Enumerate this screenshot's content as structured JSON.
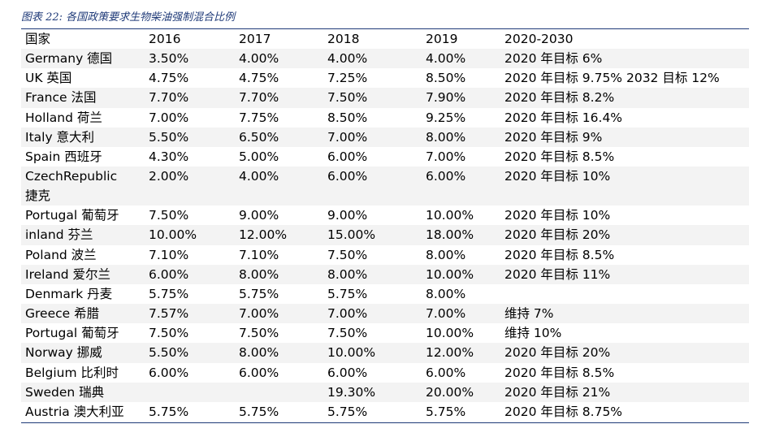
{
  "caption": "图表 22:  各国政策要求生物柴油强制混合比例",
  "table": {
    "headers": [
      "国家",
      "2016",
      "2017",
      "2018",
      "2019",
      "2020-2030"
    ],
    "rows": [
      {
        "country": "Germany 德国",
        "y2016": "3.50%",
        "y2017": "4.00%",
        "y2018": "4.00%",
        "y2019": "4.00%",
        "target": "2020 年目标 6%"
      },
      {
        "country": "UK 英国",
        "y2016": "4.75%",
        "y2017": "4.75%",
        "y2018": "7.25%",
        "y2019": "8.50%",
        "target": "2020 年目标 9.75% 2032 目标 12%"
      },
      {
        "country": "France 法国",
        "y2016": "7.70%",
        "y2017": "7.70%",
        "y2018": "7.50%",
        "y2019": "7.90%",
        "target": "2020 年目标 8.2%"
      },
      {
        "country": "Holland 荷兰",
        "y2016": "7.00%",
        "y2017": "7.75%",
        "y2018": "8.50%",
        "y2019": "9.25%",
        "target": "2020 年目标 16.4%"
      },
      {
        "country": "Italy 意大利",
        "y2016": "5.50%",
        "y2017": "6.50%",
        "y2018": "7.00%",
        "y2019": "8.00%",
        "target": "2020 年目标 9%"
      },
      {
        "country": "Spain 西班牙",
        "y2016": "4.30%",
        "y2017": "5.00%",
        "y2018": "6.00%",
        "y2019": "7.00%",
        "target": "2020 年目标 8.5%"
      },
      {
        "country_line1": "CzechRepublic",
        "country_line2": "捷克",
        "y2016": "2.00%",
        "y2017": "4.00%",
        "y2018": "6.00%",
        "y2019": "6.00%",
        "target": "2020 年目标 10%"
      },
      {
        "country": "Portugal 葡萄牙",
        "y2016": "7.50%",
        "y2017": "9.00%",
        "y2018": "9.00%",
        "y2019": "10.00%",
        "target": "2020 年目标 10%"
      },
      {
        "country": "inland 芬兰",
        "y2016": "10.00%",
        "y2017": "12.00%",
        "y2018": "15.00%",
        "y2019": "18.00%",
        "target": "2020 年目标 20%"
      },
      {
        "country": "Poland 波兰",
        "y2016": "7.10%",
        "y2017": "7.10%",
        "y2018": "7.50%",
        "y2019": "8.00%",
        "target": "2020 年目标 8.5%"
      },
      {
        "country": "Ireland 爱尔兰",
        "y2016": "6.00%",
        "y2017": "8.00%",
        "y2018": "8.00%",
        "y2019": "10.00%",
        "target": "2020 年目标 11%"
      },
      {
        "country": "Denmark 丹麦",
        "y2016": "5.75%",
        "y2017": "5.75%",
        "y2018": "5.75%",
        "y2019": "8.00%",
        "target": ""
      },
      {
        "country": "Greece 希腊",
        "y2016": "7.57%",
        "y2017": "7.00%",
        "y2018": "7.00%",
        "y2019": "7.00%",
        "target": "维持 7%"
      },
      {
        "country": "Portugal 葡萄牙",
        "y2016": "7.50%",
        "y2017": "7.50%",
        "y2018": "7.50%",
        "y2019": "10.00%",
        "target": "维持 10%"
      },
      {
        "country": "Norway 挪威",
        "y2016": "5.50%",
        "y2017": "8.00%",
        "y2018": "10.00%",
        "y2019": "12.00%",
        "target": "2020 年目标 20%"
      },
      {
        "country": "Belgium 比利时",
        "y2016": "6.00%",
        "y2017": "6.00%",
        "y2018": "6.00%",
        "y2019": "6.00%",
        "target": "2020 年目标 8.5%"
      },
      {
        "country": "Sweden 瑞典",
        "y2016": "",
        "y2017": "",
        "y2018": "19.30%",
        "y2019": "20.00%",
        "target": "2020 年目标 21%"
      },
      {
        "country": "Austria 澳大利亚",
        "y2016": "5.75%",
        "y2017": "5.75%",
        "y2018": "5.75%",
        "y2019": "5.75%",
        "target": "2020 年目标 8.75%"
      }
    ]
  },
  "colors": {
    "caption": "#1f3a78",
    "rule": "#1f3a78",
    "stripe": "#f3f3f3"
  }
}
